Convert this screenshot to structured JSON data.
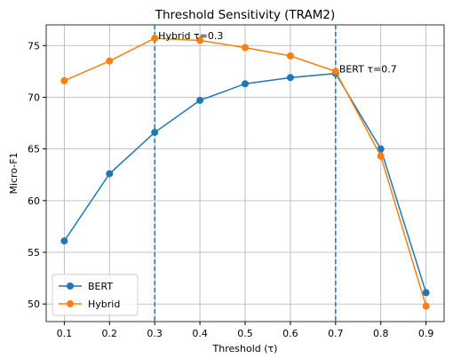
{
  "chart_data": {
    "type": "line",
    "title": "Threshold Sensitivity (TRAM2)",
    "x_label": "Threshold (τ)",
    "y_label": "Micro-F1",
    "x": [
      0.1,
      0.2,
      0.3,
      0.4,
      0.5,
      0.6,
      0.7,
      0.8,
      0.9
    ],
    "series": [
      {
        "name": "BERT",
        "color": "#1f77b4",
        "values": [
          56.1,
          62.6,
          66.6,
          69.7,
          71.3,
          71.9,
          72.3,
          65.0,
          51.1
        ]
      },
      {
        "name": "Hybrid",
        "color": "#ff7f0e",
        "values": [
          71.6,
          73.5,
          75.7,
          75.5,
          74.8,
          74.0,
          72.5,
          64.3,
          49.8
        ]
      }
    ],
    "xlim": [
      0.06,
      0.94
    ],
    "ylim": [
      48.3,
      77
    ],
    "xticks": [
      0.1,
      0.2,
      0.3,
      0.4,
      0.5,
      0.6,
      0.7,
      0.8,
      0.9
    ],
    "yticks": [
      50,
      55,
      60,
      65,
      70,
      75
    ],
    "grid": true,
    "legend": "lower left",
    "vlines": [
      0.3,
      0.7
    ],
    "vline_color": "#1f77b4",
    "annotations": [
      {
        "text": "Hybrid τ=0.3",
        "x": 0.3,
        "y": 75.7
      },
      {
        "text": "BERT τ=0.7",
        "x": 0.7,
        "y": 72.5
      }
    ]
  }
}
